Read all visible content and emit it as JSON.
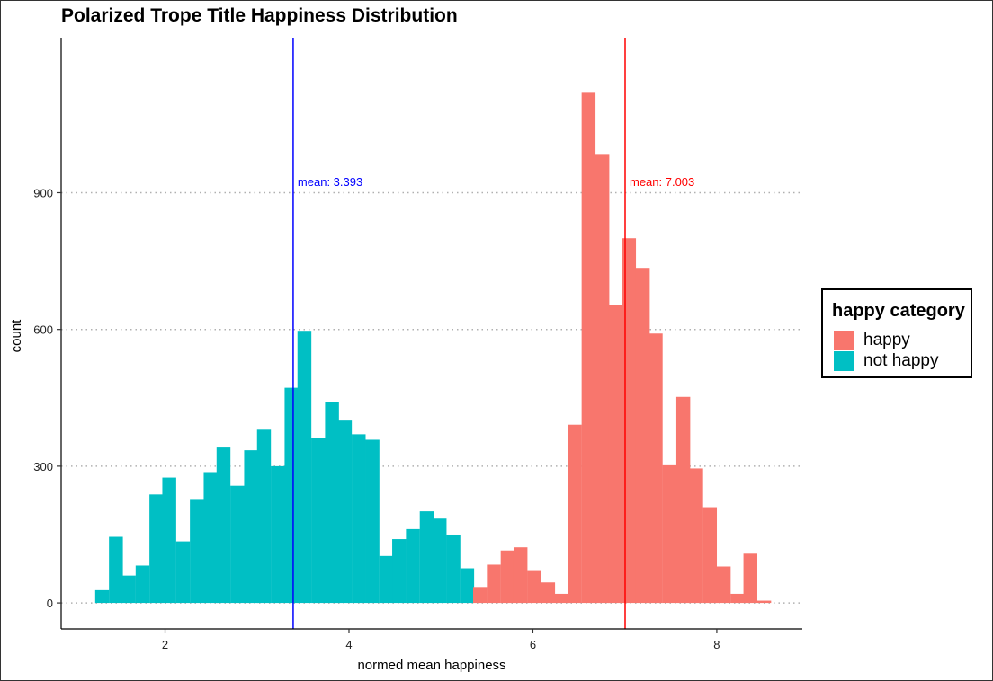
{
  "chart_data": {
    "type": "bar",
    "title": "Polarized Trope Title Happiness Distribution",
    "xlabel": "normed mean happiness",
    "ylabel": "count",
    "xlim": [
      0.87,
      8.93
    ],
    "ylim": [
      -57,
      1240
    ],
    "x_ticks": [
      2,
      4,
      6,
      8
    ],
    "y_ticks": [
      0,
      300,
      600,
      900
    ],
    "grid": "horizontal dotted",
    "legend": {
      "title": "happy category",
      "placement": "right",
      "entries": [
        {
          "label": "happy",
          "color": "#F8766D"
        },
        {
          "label": "not happy",
          "color": "#00BFC4"
        }
      ]
    },
    "bin_width": 0.147,
    "series": [
      {
        "name": "not happy",
        "color": "#00BFC4",
        "bins": [
          {
            "x0": 1.24,
            "y": 28
          },
          {
            "x0": 1.39,
            "y": 145
          },
          {
            "x0": 1.53,
            "y": 60
          },
          {
            "x0": 1.68,
            "y": 82
          },
          {
            "x0": 1.83,
            "y": 238
          },
          {
            "x0": 1.97,
            "y": 275
          },
          {
            "x0": 2.12,
            "y": 135
          },
          {
            "x0": 2.27,
            "y": 228
          },
          {
            "x0": 2.42,
            "y": 287
          },
          {
            "x0": 2.56,
            "y": 341
          },
          {
            "x0": 2.71,
            "y": 257
          },
          {
            "x0": 2.86,
            "y": 335
          },
          {
            "x0": 3.0,
            "y": 380
          },
          {
            "x0": 3.15,
            "y": 300
          },
          {
            "x0": 3.3,
            "y": 472
          },
          {
            "x0": 3.44,
            "y": 597
          },
          {
            "x0": 3.59,
            "y": 362
          },
          {
            "x0": 3.74,
            "y": 440
          },
          {
            "x0": 3.88,
            "y": 400
          },
          {
            "x0": 4.03,
            "y": 370
          },
          {
            "x0": 4.18,
            "y": 358
          },
          {
            "x0": 4.33,
            "y": 103
          },
          {
            "x0": 4.47,
            "y": 140
          },
          {
            "x0": 4.62,
            "y": 162
          },
          {
            "x0": 4.77,
            "y": 201
          },
          {
            "x0": 4.91,
            "y": 185
          },
          {
            "x0": 5.06,
            "y": 150
          },
          {
            "x0": 5.21,
            "y": 76
          }
        ]
      },
      {
        "name": "happy",
        "color": "#F8766D",
        "bins": [
          {
            "x0": 5.35,
            "y": 35
          },
          {
            "x0": 5.5,
            "y": 84
          },
          {
            "x0": 5.65,
            "y": 115
          },
          {
            "x0": 5.79,
            "y": 122
          },
          {
            "x0": 5.94,
            "y": 70
          },
          {
            "x0": 6.09,
            "y": 45
          },
          {
            "x0": 6.24,
            "y": 20
          },
          {
            "x0": 6.38,
            "y": 391
          },
          {
            "x0": 6.53,
            "y": 1121
          },
          {
            "x0": 6.68,
            "y": 985
          },
          {
            "x0": 6.82,
            "y": 653
          },
          {
            "x0": 6.97,
            "y": 800
          },
          {
            "x0": 7.12,
            "y": 735
          },
          {
            "x0": 7.26,
            "y": 591
          },
          {
            "x0": 7.41,
            "y": 302
          },
          {
            "x0": 7.56,
            "y": 452
          },
          {
            "x0": 7.7,
            "y": 295
          },
          {
            "x0": 7.85,
            "y": 210
          },
          {
            "x0": 8.0,
            "y": 80
          },
          {
            "x0": 8.15,
            "y": 20
          },
          {
            "x0": 8.29,
            "y": 108
          },
          {
            "x0": 8.44,
            "y": 5
          }
        ]
      }
    ],
    "reference_lines": [
      {
        "x": 3.393,
        "color": "#0000FF",
        "label": "mean: 3.393",
        "label_y": 925
      },
      {
        "x": 7.003,
        "color": "#FF0000",
        "label": "mean: 7.003",
        "label_y": 925
      }
    ]
  }
}
